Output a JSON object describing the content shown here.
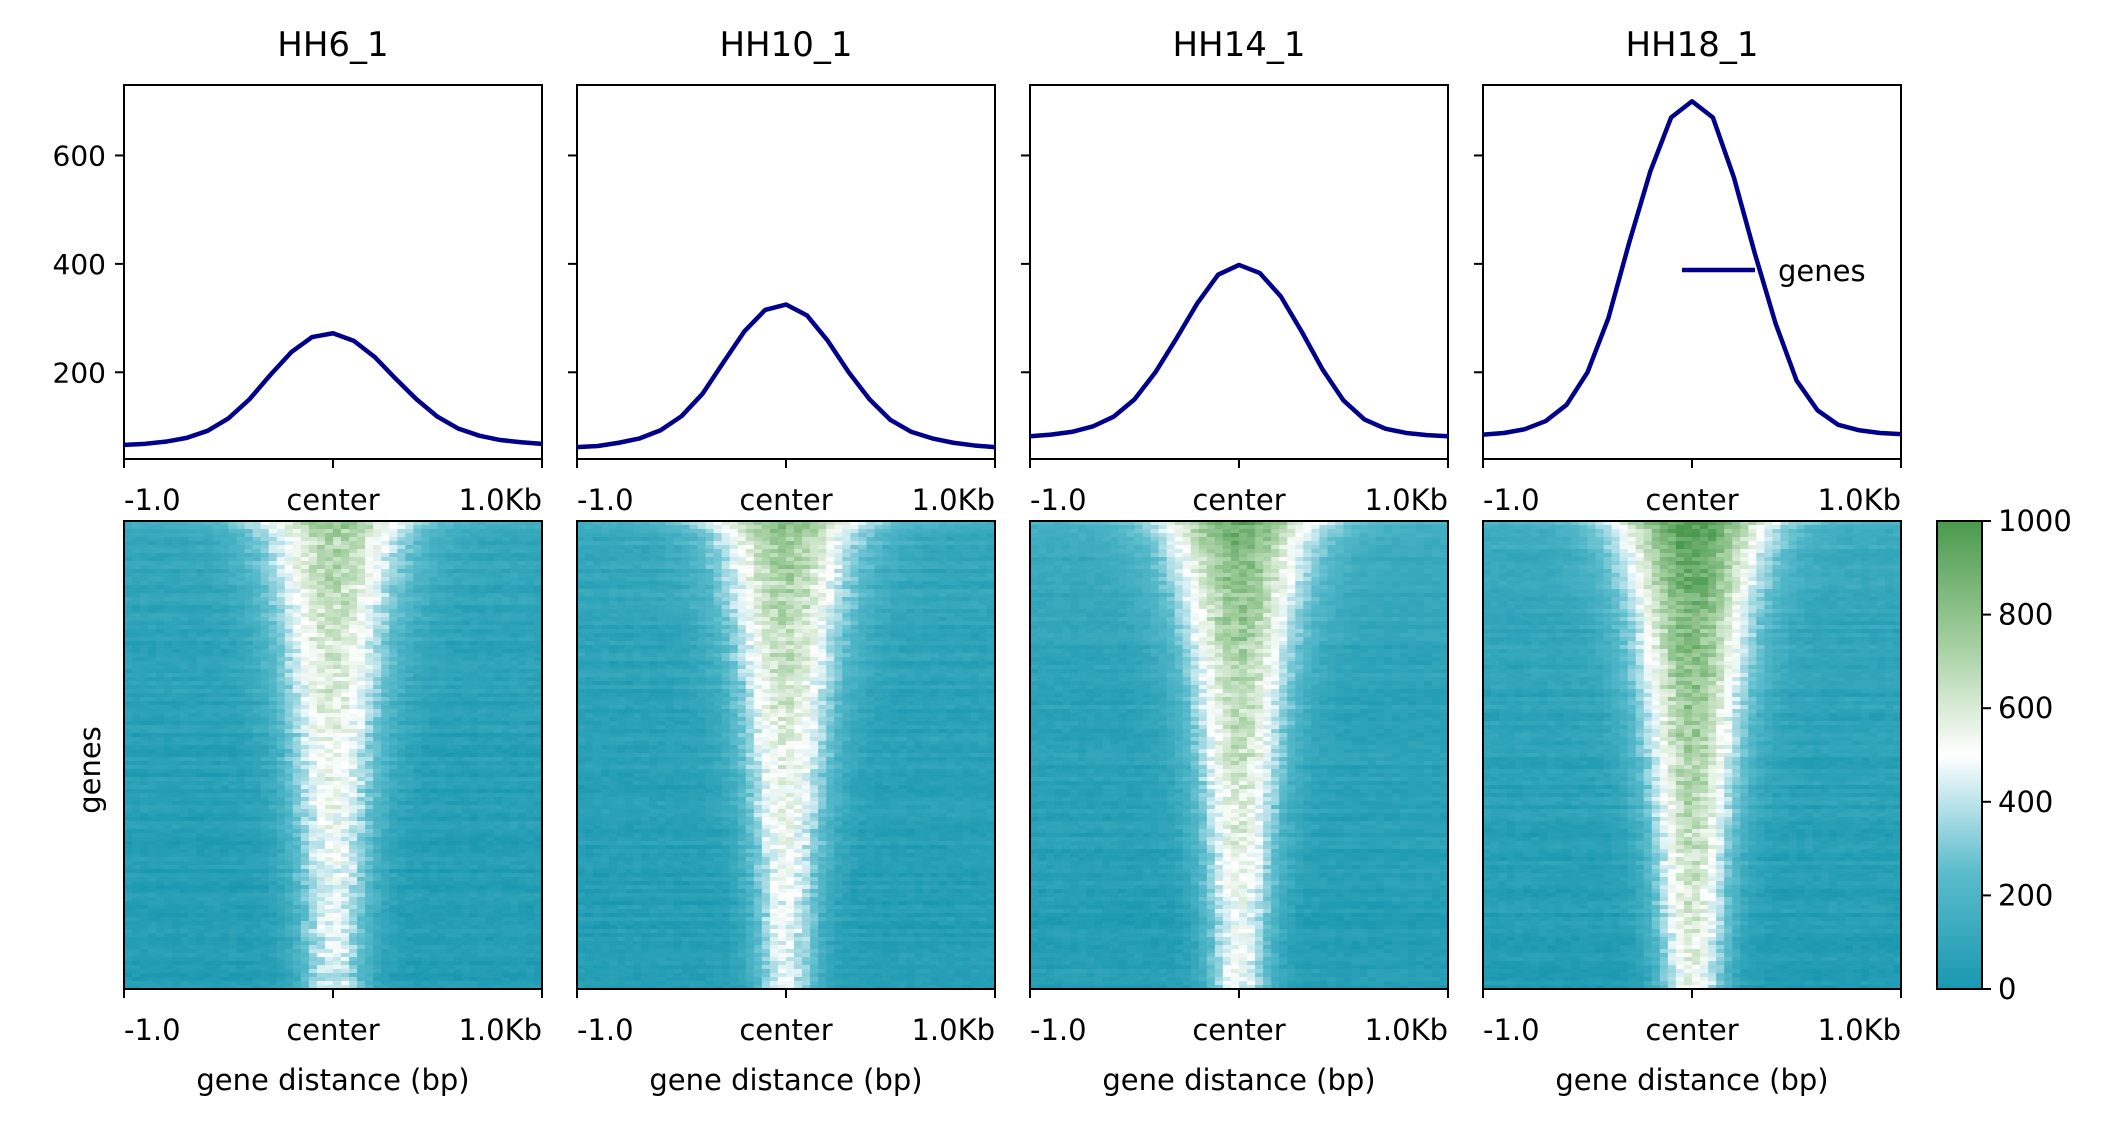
{
  "chart_data": {
    "type": "profile_heatmap",
    "y_axis_label": "genes",
    "x_axis_label": "gene distance (bp)",
    "x_ticks": [
      "-1.0",
      "center",
      "1.0Kb"
    ],
    "profile_ylim": [
      40,
      730
    ],
    "profile_yticks": [
      200,
      400,
      600
    ],
    "profile_x": [
      -1.0,
      -0.9,
      -0.8,
      -0.7,
      -0.6,
      -0.5,
      -0.4,
      -0.3,
      -0.2,
      -0.1,
      0.0,
      0.1,
      0.2,
      0.3,
      0.4,
      0.5,
      0.6,
      0.7,
      0.8,
      0.9,
      1.0
    ],
    "legend_label": "genes",
    "line_color": "#00008b",
    "colorbar": {
      "min": 0,
      "max": 1000,
      "ticks": [
        0,
        200,
        400,
        600,
        800,
        1000
      ],
      "colors": [
        "#1a98b0",
        "#5bbccc",
        "#ffffff",
        "#9fcd9b",
        "#4a9a4e"
      ]
    },
    "panels": [
      {
        "title": "HH6_1",
        "profile": [
          66,
          68,
          72,
          79,
          92,
          115,
          150,
          195,
          237,
          265,
          272,
          258,
          228,
          188,
          150,
          118,
          96,
          83,
          75,
          71,
          68
        ],
        "heatmap": {
          "center_top": 760,
          "center_bottom": 430,
          "width_top": 0.55,
          "width_bottom": 0.22,
          "bg_top": 140,
          "bg_bottom": 30
        }
      },
      {
        "title": "HH10_1",
        "profile": [
          62,
          64,
          70,
          78,
          93,
          119,
          160,
          218,
          275,
          315,
          325,
          305,
          258,
          200,
          150,
          112,
          90,
          78,
          70,
          65,
          62
        ],
        "heatmap": {
          "center_top": 800,
          "center_bottom": 440,
          "width_top": 0.55,
          "width_bottom": 0.2,
          "bg_top": 150,
          "bg_bottom": 35
        }
      },
      {
        "title": "HH14_1",
        "profile": [
          82,
          85,
          90,
          100,
          118,
          150,
          200,
          262,
          327,
          380,
          398,
          383,
          340,
          275,
          205,
          148,
          113,
          96,
          88,
          84,
          82
        ],
        "heatmap": {
          "center_top": 900,
          "center_bottom": 480,
          "width_top": 0.55,
          "width_bottom": 0.2,
          "bg_top": 170,
          "bg_bottom": 35
        }
      },
      {
        "title": "HH18_1",
        "profile": [
          85,
          88,
          95,
          110,
          140,
          200,
          300,
          440,
          570,
          670,
          700,
          670,
          560,
          420,
          290,
          185,
          130,
          103,
          93,
          88,
          86
        ],
        "heatmap": {
          "center_top": 1000,
          "center_bottom": 560,
          "width_top": 0.55,
          "width_bottom": 0.22,
          "bg_top": 170,
          "bg_bottom": 40
        }
      }
    ]
  }
}
